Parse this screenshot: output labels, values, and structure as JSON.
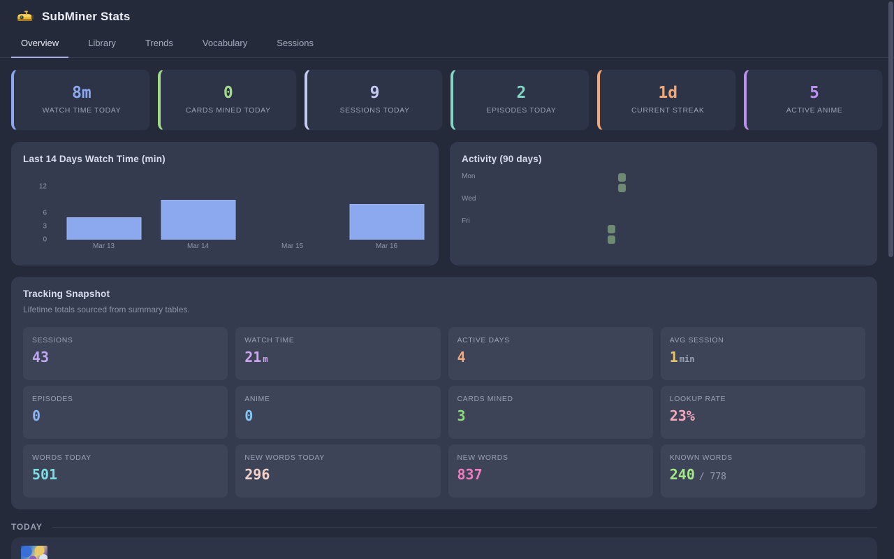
{
  "app": {
    "title": "SubMiner Stats",
    "logo": "yellow-submarine"
  },
  "tabs": [
    {
      "label": "Overview",
      "active": true
    },
    {
      "label": "Library",
      "active": false
    },
    {
      "label": "Trends",
      "active": false
    },
    {
      "label": "Vocabulary",
      "active": false
    },
    {
      "label": "Sessions",
      "active": false
    }
  ],
  "stat_cards": [
    {
      "value": "8m",
      "label": "WATCH TIME TODAY",
      "color": "#8ba7ee"
    },
    {
      "value": "0",
      "label": "CARDS MINED TODAY",
      "color": "#a3d98b"
    },
    {
      "value": "9",
      "label": "SESSIONS TODAY",
      "color": "#c3c9ef"
    },
    {
      "value": "2",
      "label": "EPISODES TODAY",
      "color": "#82d7c4"
    },
    {
      "value": "1d",
      "label": "CURRENT STREAK",
      "color": "#f0a878"
    },
    {
      "value": "5",
      "label": "ACTIVE ANIME",
      "color": "#bb91f0"
    }
  ],
  "chart_data": [
    {
      "type": "bar",
      "title": "Last 14 Days Watch Time (min)",
      "categories": [
        "Mar 13",
        "Mar 14",
        "Mar 15",
        "Mar 16"
      ],
      "values": [
        5,
        9,
        0,
        8
      ],
      "xlabel": "",
      "ylabel": "",
      "ylim": [
        0,
        12
      ],
      "yticks": [
        0,
        3,
        6,
        12
      ],
      "grid": false,
      "legend": "none",
      "bar_color": "#8ca8ee"
    },
    {
      "type": "heatmap",
      "title": "Activity (90 days)",
      "row_labels": [
        "Mon",
        "Wed",
        "Fri"
      ],
      "rows": [
        "Mon",
        "Tue",
        "Wed",
        "Thu",
        "Fri",
        "Sat",
        "Sun"
      ],
      "active_cells": [
        {
          "day": "Mon",
          "day_index": 0,
          "week_col": 12
        },
        {
          "day": "Tue",
          "day_index": 1,
          "week_col": 12
        },
        {
          "day": "Sat",
          "day_index": 5,
          "week_col": 11
        },
        {
          "day": "Sun",
          "day_index": 6,
          "week_col": 11
        }
      ],
      "cell_color": "#6f8a72"
    }
  ],
  "tracking": {
    "title": "Tracking Snapshot",
    "subtitle": "Lifetime totals sourced from summary tables.",
    "tiles": [
      {
        "label": "SESSIONS",
        "value": "43",
        "unit": "",
        "suffix": "",
        "color": "#bda6f2",
        "unit_color": ""
      },
      {
        "label": "WATCH TIME",
        "value": "21",
        "unit": "m",
        "suffix": "",
        "color": "#cda5f0",
        "unit_color": "#cda5f0"
      },
      {
        "label": "ACTIVE DAYS",
        "value": "4",
        "unit": "",
        "suffix": "",
        "color": "#f0a878",
        "unit_color": ""
      },
      {
        "label": "AVG SESSION",
        "value": "1",
        "unit": "min",
        "suffix": "",
        "color": "#e5c36a",
        "unit_color": "#9aa2b8"
      },
      {
        "label": "EPISODES",
        "value": "0",
        "unit": "",
        "suffix": "",
        "color": "#8cb4f0",
        "unit_color": ""
      },
      {
        "label": "ANIME",
        "value": "0",
        "unit": "",
        "suffix": "",
        "color": "#85c6f2",
        "unit_color": ""
      },
      {
        "label": "CARDS MINED",
        "value": "3",
        "unit": "",
        "suffix": "",
        "color": "#8ed97d",
        "unit_color": ""
      },
      {
        "label": "LOOKUP RATE",
        "value": "23%",
        "unit": "",
        "suffix": "",
        "color": "#f2a9bd",
        "unit_color": ""
      },
      {
        "label": "WORDS TODAY",
        "value": "501",
        "unit": "",
        "suffix": "",
        "color": "#7cdde2",
        "unit_color": ""
      },
      {
        "label": "NEW WORDS TODAY",
        "value": "296",
        "unit": "",
        "suffix": "",
        "color": "#f2d3cb",
        "unit_color": ""
      },
      {
        "label": "NEW WORDS",
        "value": "837",
        "unit": "",
        "suffix": "",
        "color": "#ee7dc0",
        "unit_color": ""
      },
      {
        "label": "KNOWN WORDS",
        "value": "240",
        "unit": "",
        "suffix": "/ 778",
        "color": "#a5e787",
        "unit_color": ""
      }
    ]
  },
  "today": {
    "label": "TODAY"
  }
}
